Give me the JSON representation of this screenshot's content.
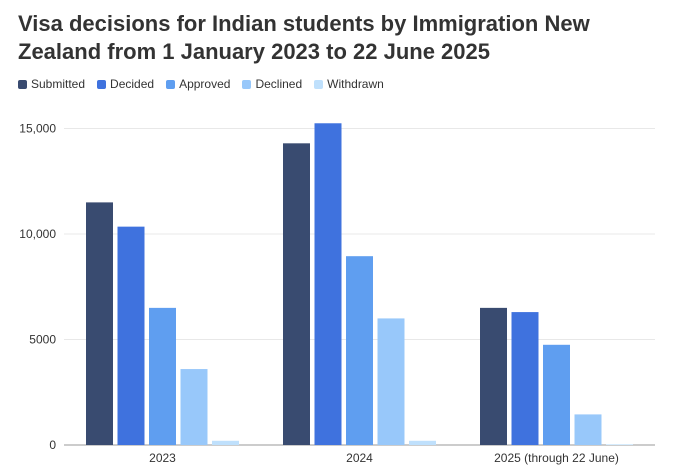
{
  "chart_data": {
    "type": "bar",
    "title": "Visa decisions for Indian students by Immigration New Zealand from 1 January 2023 to 22 June 2025",
    "categories": [
      "2023",
      "2024",
      "2025 (through 22 June)"
    ],
    "series": [
      {
        "name": "Submitted",
        "color": "#394b70",
        "values": [
          11500,
          14300,
          6500
        ]
      },
      {
        "name": "Decided",
        "color": "#3f72de",
        "values": [
          10350,
          15250,
          6300
        ]
      },
      {
        "name": "Approved",
        "color": "#5f9ef0",
        "values": [
          6500,
          8950,
          4750
        ]
      },
      {
        "name": "Declined",
        "color": "#98c8fa",
        "values": [
          3600,
          6000,
          1450
        ]
      },
      {
        "name": "Withdrawn",
        "color": "#bfe0fc",
        "values": [
          200,
          200,
          30
        ]
      }
    ],
    "ytick_labels": [
      "0",
      "5000",
      "10,000",
      "15,000"
    ],
    "ytick_values": [
      0,
      5000,
      10000,
      15000
    ],
    "ylim": [
      0,
      15500
    ],
    "xlabel": "",
    "ylabel": "",
    "grid": true,
    "legend_position": "top-left"
  }
}
